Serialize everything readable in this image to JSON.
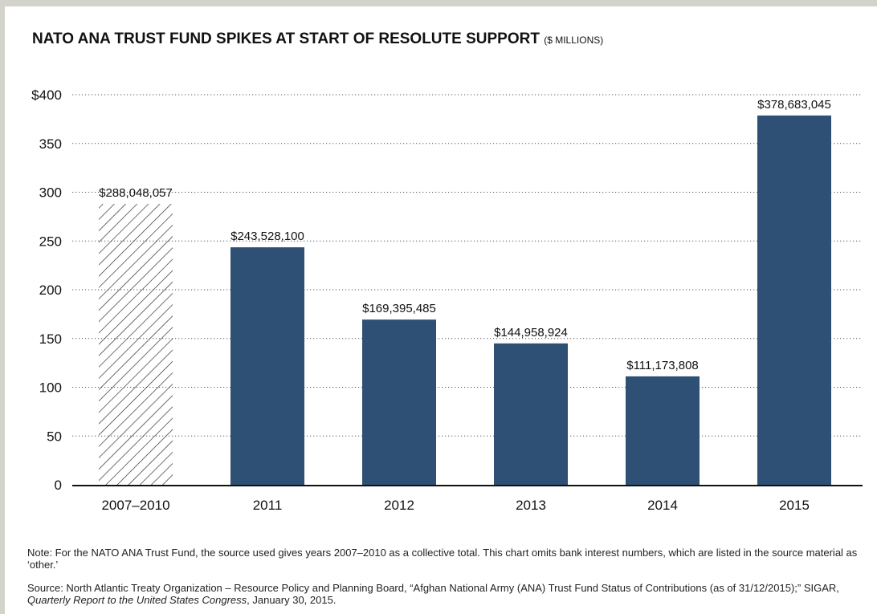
{
  "title": "NATO ANA TRUST FUND SPIKES AT START OF RESOLUTE SUPPORT",
  "title_unit": "($ MILLIONS)",
  "chart_data": {
    "type": "bar",
    "categories": [
      "2007–2010",
      "2011",
      "2012",
      "2013",
      "2014",
      "2015"
    ],
    "values": [
      288.048057,
      243.5281,
      169.395485,
      144.958924,
      111.173808,
      378.683045
    ],
    "data_labels": [
      "$288,048,057",
      "$243,528,100",
      "$169,395,485",
      "$144,958,924",
      "$111,173,808",
      "$378,683,045"
    ],
    "ytick_values": [
      0,
      50,
      100,
      150,
      200,
      250,
      300,
      350,
      400
    ],
    "ytick_labels": [
      "0",
      "50",
      "100",
      "150",
      "200",
      "250",
      "300",
      "350",
      "$400"
    ],
    "ylim": [
      0,
      400
    ],
    "grid": "dotted horizontal",
    "colors": {
      "bar": "#2d5074",
      "hatched_bar": "#222222"
    },
    "hatched_categories": [
      "2007–2010"
    ]
  },
  "note": "Note: For the NATO ANA Trust Fund, the source used gives years 2007–2010 as a collective total. This chart omits bank interest numbers, which are listed in the source material as ‘other.’",
  "source": {
    "prefix": "Source: North Atlantic Treaty Organization – Resource Policy and Planning Board, “Afghan National Army (ANA) Trust Fund Status of Contributions (as of 31/12/2015);” SIGAR, ",
    "publication": "Quarterly Report to the United States Congress",
    "suffix": ", January 30, 2015."
  }
}
